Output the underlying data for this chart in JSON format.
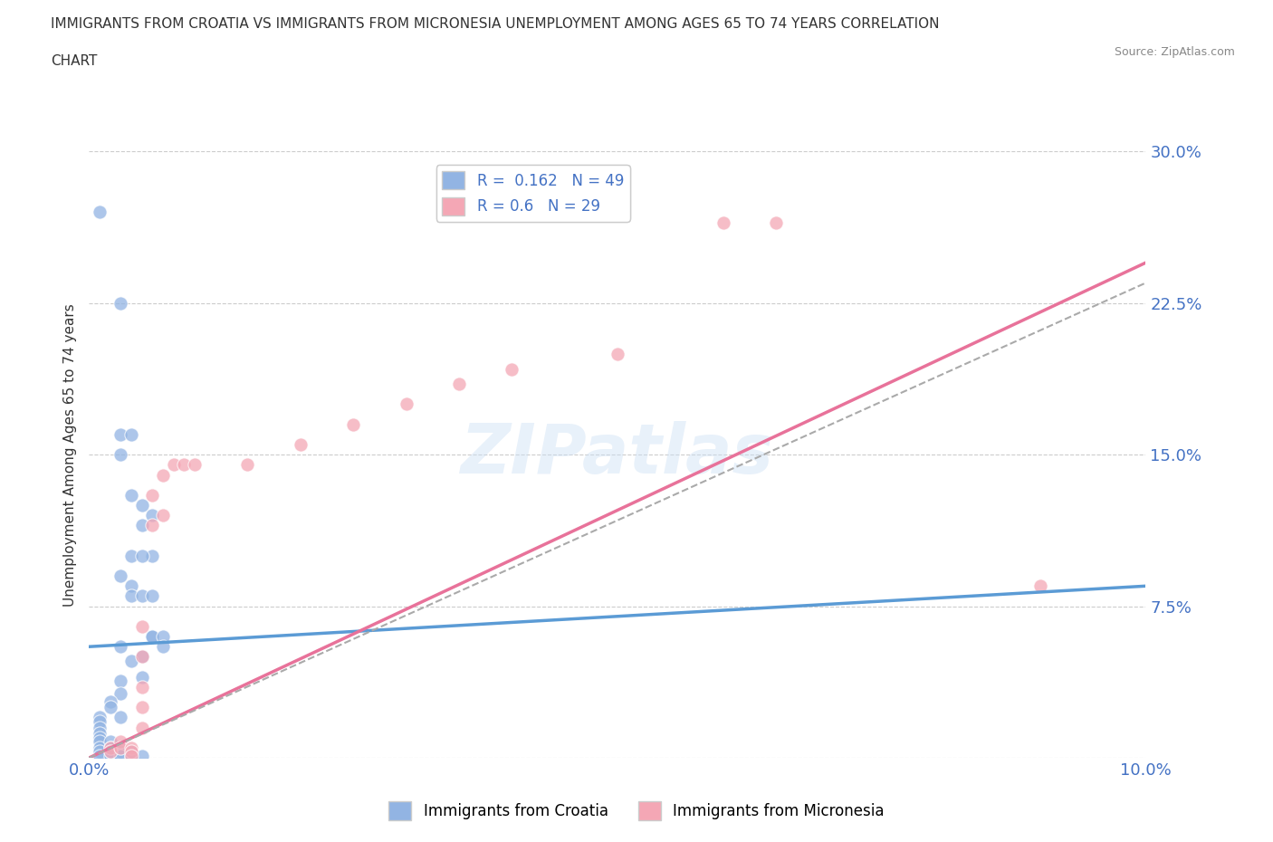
{
  "title_line1": "IMMIGRANTS FROM CROATIA VS IMMIGRANTS FROM MICRONESIA UNEMPLOYMENT AMONG AGES 65 TO 74 YEARS CORRELATION",
  "title_line2": "CHART",
  "source": "Source: ZipAtlas.com",
  "ylabel": "Unemployment Among Ages 65 to 74 years",
  "xlim": [
    0.0,
    0.1
  ],
  "ylim": [
    0.0,
    0.3
  ],
  "yticks": [
    0.0,
    0.075,
    0.15,
    0.225,
    0.3
  ],
  "ytick_labels": [
    "",
    "7.5%",
    "15.0%",
    "22.5%",
    "30.0%"
  ],
  "xticks": [
    0.0,
    0.02,
    0.04,
    0.06,
    0.08,
    0.1
  ],
  "xtick_labels": [
    "0.0%",
    "",
    "",
    "",
    "",
    "10.0%"
  ],
  "croatia_color": "#92b4e3",
  "micronesia_color": "#f4a7b5",
  "croatia_line_color": "#5b9bd5",
  "micronesia_line_color": "#e8729a",
  "dashed_line_color": "#aaaaaa",
  "croatia_R": 0.162,
  "croatia_N": 49,
  "micronesia_R": 0.6,
  "micronesia_N": 29,
  "watermark": "ZIPatlas",
  "background_color": "#ffffff",
  "grid_color": "#cccccc",
  "tick_label_color": "#4472c4",
  "croatia_scatter": [
    [
      0.001,
      0.27
    ],
    [
      0.003,
      0.225
    ],
    [
      0.003,
      0.16
    ],
    [
      0.003,
      0.15
    ],
    [
      0.004,
      0.16
    ],
    [
      0.004,
      0.13
    ],
    [
      0.004,
      0.1
    ],
    [
      0.005,
      0.125
    ],
    [
      0.005,
      0.115
    ],
    [
      0.006,
      0.12
    ],
    [
      0.006,
      0.1
    ],
    [
      0.005,
      0.1
    ],
    [
      0.003,
      0.09
    ],
    [
      0.004,
      0.085
    ],
    [
      0.004,
      0.08
    ],
    [
      0.005,
      0.08
    ],
    [
      0.006,
      0.08
    ],
    [
      0.006,
      0.06
    ],
    [
      0.006,
      0.06
    ],
    [
      0.007,
      0.06
    ],
    [
      0.007,
      0.055
    ],
    [
      0.003,
      0.055
    ],
    [
      0.005,
      0.05
    ],
    [
      0.004,
      0.048
    ],
    [
      0.005,
      0.04
    ],
    [
      0.003,
      0.038
    ],
    [
      0.003,
      0.032
    ],
    [
      0.002,
      0.028
    ],
    [
      0.002,
      0.025
    ],
    [
      0.003,
      0.02
    ],
    [
      0.001,
      0.02
    ],
    [
      0.001,
      0.018
    ],
    [
      0.001,
      0.015
    ],
    [
      0.001,
      0.012
    ],
    [
      0.001,
      0.01
    ],
    [
      0.001,
      0.008
    ],
    [
      0.001,
      0.005
    ],
    [
      0.001,
      0.003
    ],
    [
      0.001,
      0.001
    ],
    [
      0.002,
      0.008
    ],
    [
      0.002,
      0.005
    ],
    [
      0.002,
      0.003
    ],
    [
      0.002,
      0.001
    ],
    [
      0.003,
      0.005
    ],
    [
      0.003,
      0.003
    ],
    [
      0.003,
      0.001
    ],
    [
      0.004,
      0.003
    ],
    [
      0.004,
      0.001
    ],
    [
      0.005,
      0.001
    ]
  ],
  "micronesia_scatter": [
    [
      0.002,
      0.005
    ],
    [
      0.002,
      0.003
    ],
    [
      0.003,
      0.008
    ],
    [
      0.003,
      0.005
    ],
    [
      0.004,
      0.005
    ],
    [
      0.004,
      0.003
    ],
    [
      0.004,
      0.001
    ],
    [
      0.005,
      0.065
    ],
    [
      0.005,
      0.05
    ],
    [
      0.005,
      0.035
    ],
    [
      0.005,
      0.025
    ],
    [
      0.005,
      0.015
    ],
    [
      0.006,
      0.13
    ],
    [
      0.006,
      0.115
    ],
    [
      0.007,
      0.14
    ],
    [
      0.007,
      0.12
    ],
    [
      0.008,
      0.145
    ],
    [
      0.009,
      0.145
    ],
    [
      0.01,
      0.145
    ],
    [
      0.015,
      0.145
    ],
    [
      0.02,
      0.155
    ],
    [
      0.025,
      0.165
    ],
    [
      0.03,
      0.175
    ],
    [
      0.035,
      0.185
    ],
    [
      0.04,
      0.192
    ],
    [
      0.05,
      0.2
    ],
    [
      0.06,
      0.265
    ],
    [
      0.065,
      0.265
    ],
    [
      0.09,
      0.085
    ]
  ],
  "croatia_line": {
    "x0": 0.0,
    "y0": 0.055,
    "x1": 0.1,
    "y1": 0.085
  },
  "micronesia_line": {
    "x0": 0.0,
    "y0": 0.0,
    "x1": 0.1,
    "y1": 0.245
  },
  "dashed_line": {
    "x0": 0.0,
    "y0": 0.0,
    "x1": 0.1,
    "y1": 0.235
  }
}
